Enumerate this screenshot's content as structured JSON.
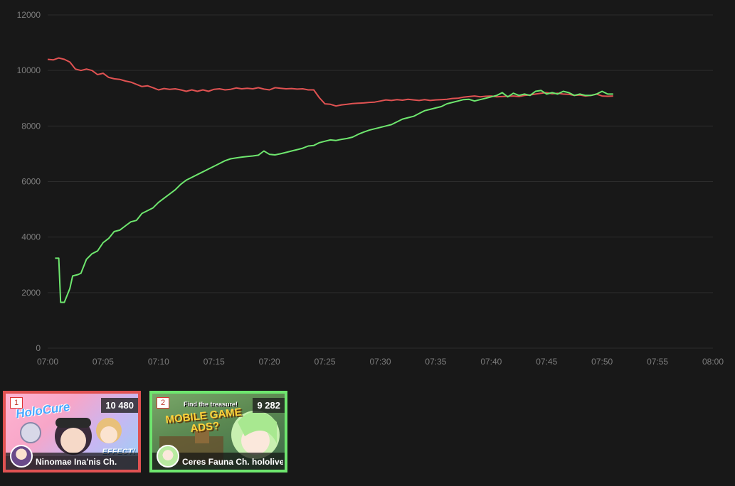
{
  "chart_data": {
    "type": "line",
    "title": "",
    "xlabel": "",
    "ylabel": "",
    "ylim": [
      0,
      12000
    ],
    "yticks": [
      0,
      2000,
      4000,
      6000,
      8000,
      10000,
      12000
    ],
    "xlim": [
      "07:00",
      "08:00"
    ],
    "xticks": [
      "07:00",
      "07:05",
      "07:10",
      "07:15",
      "07:20",
      "07:25",
      "07:30",
      "07:35",
      "07:40",
      "07:45",
      "07:50",
      "07:55",
      "08:00"
    ],
    "grid": true,
    "legend": "none",
    "series": [
      {
        "color": "#e05252",
        "points": [
          [
            "07:00",
            10400
          ],
          [
            "07:00:30",
            10380
          ],
          [
            "07:01",
            10450
          ],
          [
            "07:01:30",
            10400
          ],
          [
            "07:02",
            10300
          ],
          [
            "07:02:30",
            10050
          ],
          [
            "07:03",
            10000
          ],
          [
            "07:03:30",
            10050
          ],
          [
            "07:04",
            10000
          ],
          [
            "07:04:30",
            9850
          ],
          [
            "07:05",
            9900
          ],
          [
            "07:05:30",
            9750
          ],
          [
            "07:06",
            9700
          ],
          [
            "07:06:30",
            9680
          ],
          [
            "07:07",
            9620
          ],
          [
            "07:07:30",
            9580
          ],
          [
            "07:08",
            9500
          ],
          [
            "07:08:30",
            9420
          ],
          [
            "07:09",
            9450
          ],
          [
            "07:09:30",
            9380
          ],
          [
            "07:10",
            9300
          ],
          [
            "07:10:30",
            9350
          ],
          [
            "07:11",
            9320
          ],
          [
            "07:11:30",
            9340
          ],
          [
            "07:12",
            9300
          ],
          [
            "07:12:30",
            9250
          ],
          [
            "07:13",
            9300
          ],
          [
            "07:13:30",
            9250
          ],
          [
            "07:14",
            9300
          ],
          [
            "07:14:30",
            9250
          ],
          [
            "07:15",
            9320
          ],
          [
            "07:15:30",
            9340
          ],
          [
            "07:16",
            9300
          ],
          [
            "07:16:30",
            9320
          ],
          [
            "07:17",
            9370
          ],
          [
            "07:17:30",
            9340
          ],
          [
            "07:18",
            9360
          ],
          [
            "07:18:30",
            9340
          ],
          [
            "07:19",
            9380
          ],
          [
            "07:19:30",
            9330
          ],
          [
            "07:20",
            9300
          ],
          [
            "07:20:30",
            9380
          ],
          [
            "07:21",
            9360
          ],
          [
            "07:21:30",
            9340
          ],
          [
            "07:22",
            9350
          ],
          [
            "07:22:30",
            9330
          ],
          [
            "07:23",
            9340
          ],
          [
            "07:23:30",
            9300
          ],
          [
            "07:24",
            9300
          ],
          [
            "07:24:30",
            9020
          ],
          [
            "07:25",
            8800
          ],
          [
            "07:25:30",
            8780
          ],
          [
            "07:26",
            8720
          ],
          [
            "07:26:30",
            8760
          ],
          [
            "07:27",
            8780
          ],
          [
            "07:27:30",
            8810
          ],
          [
            "07:28",
            8820
          ],
          [
            "07:28:30",
            8830
          ],
          [
            "07:29",
            8850
          ],
          [
            "07:29:30",
            8860
          ],
          [
            "07:30",
            8900
          ],
          [
            "07:30:30",
            8940
          ],
          [
            "07:31",
            8920
          ],
          [
            "07:31:30",
            8950
          ],
          [
            "07:32",
            8930
          ],
          [
            "07:32:30",
            8960
          ],
          [
            "07:33",
            8940
          ],
          [
            "07:33:30",
            8920
          ],
          [
            "07:34",
            8950
          ],
          [
            "07:34:30",
            8920
          ],
          [
            "07:35",
            8940
          ],
          [
            "07:35:30",
            8950
          ],
          [
            "07:36",
            8960
          ],
          [
            "07:36:30",
            8990
          ],
          [
            "07:37",
            9000
          ],
          [
            "07:37:30",
            9040
          ],
          [
            "07:38",
            9060
          ],
          [
            "07:38:30",
            9080
          ],
          [
            "07:39",
            9050
          ],
          [
            "07:39:30",
            9070
          ],
          [
            "07:40",
            9080
          ],
          [
            "07:40:30",
            9050
          ],
          [
            "07:41",
            9060
          ],
          [
            "07:41:30",
            9070
          ],
          [
            "07:42",
            9080
          ],
          [
            "07:42:30",
            9060
          ],
          [
            "07:43",
            9100
          ],
          [
            "07:43:30",
            9120
          ],
          [
            "07:44",
            9150
          ],
          [
            "07:44:30",
            9180
          ],
          [
            "07:45",
            9200
          ],
          [
            "07:45:30",
            9160
          ],
          [
            "07:46",
            9180
          ],
          [
            "07:46:30",
            9150
          ],
          [
            "07:47",
            9140
          ],
          [
            "07:47:30",
            9100
          ],
          [
            "07:48",
            9120
          ],
          [
            "07:48:30",
            9080
          ],
          [
            "07:49",
            9100
          ],
          [
            "07:49:30",
            9150
          ],
          [
            "07:50",
            9080
          ],
          [
            "07:50:30",
            9070
          ],
          [
            "07:51",
            9080
          ]
        ]
      },
      {
        "color": "#6ee66e",
        "points": [
          [
            "07:00:40",
            3240
          ],
          [
            "07:01",
            3240
          ],
          [
            "07:01:10",
            1650
          ],
          [
            "07:01:30",
            1650
          ],
          [
            "07:02",
            2150
          ],
          [
            "07:02:15",
            2600
          ],
          [
            "07:02:45",
            2650
          ],
          [
            "07:03",
            2700
          ],
          [
            "07:03:30",
            3200
          ],
          [
            "07:04",
            3400
          ],
          [
            "07:04:30",
            3500
          ],
          [
            "07:05",
            3800
          ],
          [
            "07:05:30",
            3950
          ],
          [
            "07:06",
            4200
          ],
          [
            "07:06:30",
            4250
          ],
          [
            "07:07",
            4400
          ],
          [
            "07:07:30",
            4550
          ],
          [
            "07:08",
            4600
          ],
          [
            "07:08:30",
            4850
          ],
          [
            "07:09",
            4950
          ],
          [
            "07:09:30",
            5050
          ],
          [
            "07:10",
            5250
          ],
          [
            "07:10:30",
            5400
          ],
          [
            "07:11",
            5550
          ],
          [
            "07:11:30",
            5700
          ],
          [
            "07:12",
            5900
          ],
          [
            "07:12:30",
            6050
          ],
          [
            "07:13",
            6150
          ],
          [
            "07:13:30",
            6250
          ],
          [
            "07:14",
            6350
          ],
          [
            "07:14:30",
            6450
          ],
          [
            "07:15",
            6550
          ],
          [
            "07:15:30",
            6650
          ],
          [
            "07:16",
            6750
          ],
          [
            "07:16:30",
            6820
          ],
          [
            "07:17",
            6850
          ],
          [
            "07:17:30",
            6880
          ],
          [
            "07:18",
            6900
          ],
          [
            "07:18:30",
            6920
          ],
          [
            "07:19",
            6950
          ],
          [
            "07:19:30",
            7100
          ],
          [
            "07:20",
            6980
          ],
          [
            "07:20:30",
            6960
          ],
          [
            "07:21",
            7000
          ],
          [
            "07:21:30",
            7050
          ],
          [
            "07:22",
            7100
          ],
          [
            "07:22:30",
            7150
          ],
          [
            "07:23",
            7200
          ],
          [
            "07:23:30",
            7280
          ],
          [
            "07:24",
            7300
          ],
          [
            "07:24:30",
            7400
          ],
          [
            "07:25",
            7450
          ],
          [
            "07:25:30",
            7500
          ],
          [
            "07:26",
            7480
          ],
          [
            "07:26:30",
            7520
          ],
          [
            "07:27",
            7550
          ],
          [
            "07:27:30",
            7600
          ],
          [
            "07:28",
            7700
          ],
          [
            "07:28:30",
            7780
          ],
          [
            "07:29",
            7850
          ],
          [
            "07:29:30",
            7900
          ],
          [
            "07:30",
            7950
          ],
          [
            "07:30:30",
            8000
          ],
          [
            "07:31",
            8050
          ],
          [
            "07:31:30",
            8150
          ],
          [
            "07:32",
            8250
          ],
          [
            "07:32:30",
            8300
          ],
          [
            "07:33",
            8350
          ],
          [
            "07:33:30",
            8450
          ],
          [
            "07:34",
            8550
          ],
          [
            "07:34:30",
            8600
          ],
          [
            "07:35",
            8650
          ],
          [
            "07:35:30",
            8700
          ],
          [
            "07:36",
            8800
          ],
          [
            "07:36:30",
            8850
          ],
          [
            "07:37",
            8900
          ],
          [
            "07:37:30",
            8950
          ],
          [
            "07:38",
            8960
          ],
          [
            "07:38:30",
            8900
          ],
          [
            "07:39",
            8950
          ],
          [
            "07:39:30",
            9000
          ],
          [
            "07:40",
            9050
          ],
          [
            "07:40:30",
            9100
          ],
          [
            "07:41",
            9200
          ],
          [
            "07:41:30",
            9050
          ],
          [
            "07:42",
            9180
          ],
          [
            "07:42:30",
            9100
          ],
          [
            "07:43",
            9150
          ],
          [
            "07:43:30",
            9100
          ],
          [
            "07:44",
            9250
          ],
          [
            "07:44:30",
            9280
          ],
          [
            "07:45",
            9150
          ],
          [
            "07:45:30",
            9200
          ],
          [
            "07:46",
            9150
          ],
          [
            "07:46:30",
            9250
          ],
          [
            "07:47",
            9200
          ],
          [
            "07:47:30",
            9100
          ],
          [
            "07:48",
            9150
          ],
          [
            "07:48:30",
            9100
          ],
          [
            "07:49",
            9100
          ],
          [
            "07:49:30",
            9150
          ],
          [
            "07:50",
            9250
          ],
          [
            "07:50:30",
            9150
          ],
          [
            "07:51",
            9150
          ]
        ]
      }
    ]
  },
  "cards": [
    {
      "rank": "1",
      "viewers": "10 480",
      "channel": "Ninomae Ina'nis Ch.",
      "border_color": "#e05252",
      "thumb_text": "HoloCure",
      "thumb_text2": "EFFECT!",
      "avatar_icon": "avatar-icon"
    },
    {
      "rank": "2",
      "viewers": "9 282",
      "channel": "Ceres Fauna Ch. hololive-",
      "border_color": "#6ee66e",
      "thumb_text": "Find the treasure!",
      "thumb_text2": "MOBILE GAME ADS?",
      "avatar_icon": "avatar-icon"
    }
  ]
}
